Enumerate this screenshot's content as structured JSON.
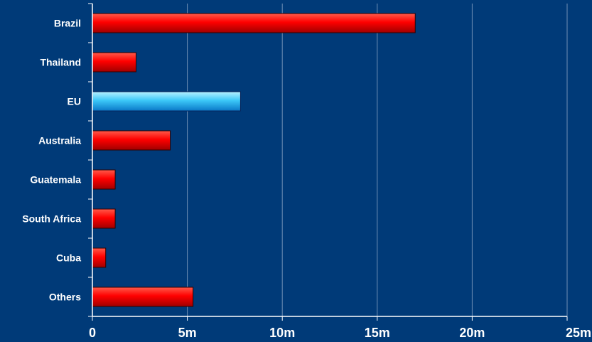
{
  "chart_data": {
    "type": "bar",
    "orientation": "horizontal",
    "categories": [
      "Brazil",
      "Thailand",
      "EU",
      "Australia",
      "Guatemala",
      "South Africa",
      "Cuba",
      "Others"
    ],
    "values": [
      17.0,
      2.3,
      7.8,
      4.1,
      1.2,
      1.2,
      0.7,
      5.3
    ],
    "highlight_category": "EU",
    "xlim": [
      0,
      25
    ],
    "x_ticks": [
      {
        "value": 0,
        "label": "0"
      },
      {
        "value": 5,
        "label": "5m"
      },
      {
        "value": 10,
        "label": "10m"
      },
      {
        "value": 15,
        "label": "15m"
      },
      {
        "value": 20,
        "label": "20m"
      },
      {
        "value": 25,
        "label": "25m"
      }
    ],
    "grid": "vertical",
    "title": "",
    "xlabel": "",
    "ylabel": ""
  },
  "colors": {
    "background": "#003a78",
    "grid": "#6f8fb5",
    "axis": "#ffffff",
    "bar_top": "#ff5a4a",
    "bar_mid": "#ff0000",
    "bar_bottom": "#a00000",
    "highlight_top": "#b8f0ff",
    "highlight_mid": "#3cc8f8",
    "highlight_bottom": "#0a78c8",
    "bar_stroke": "#300000",
    "highlight_stroke": "#08245a"
  }
}
